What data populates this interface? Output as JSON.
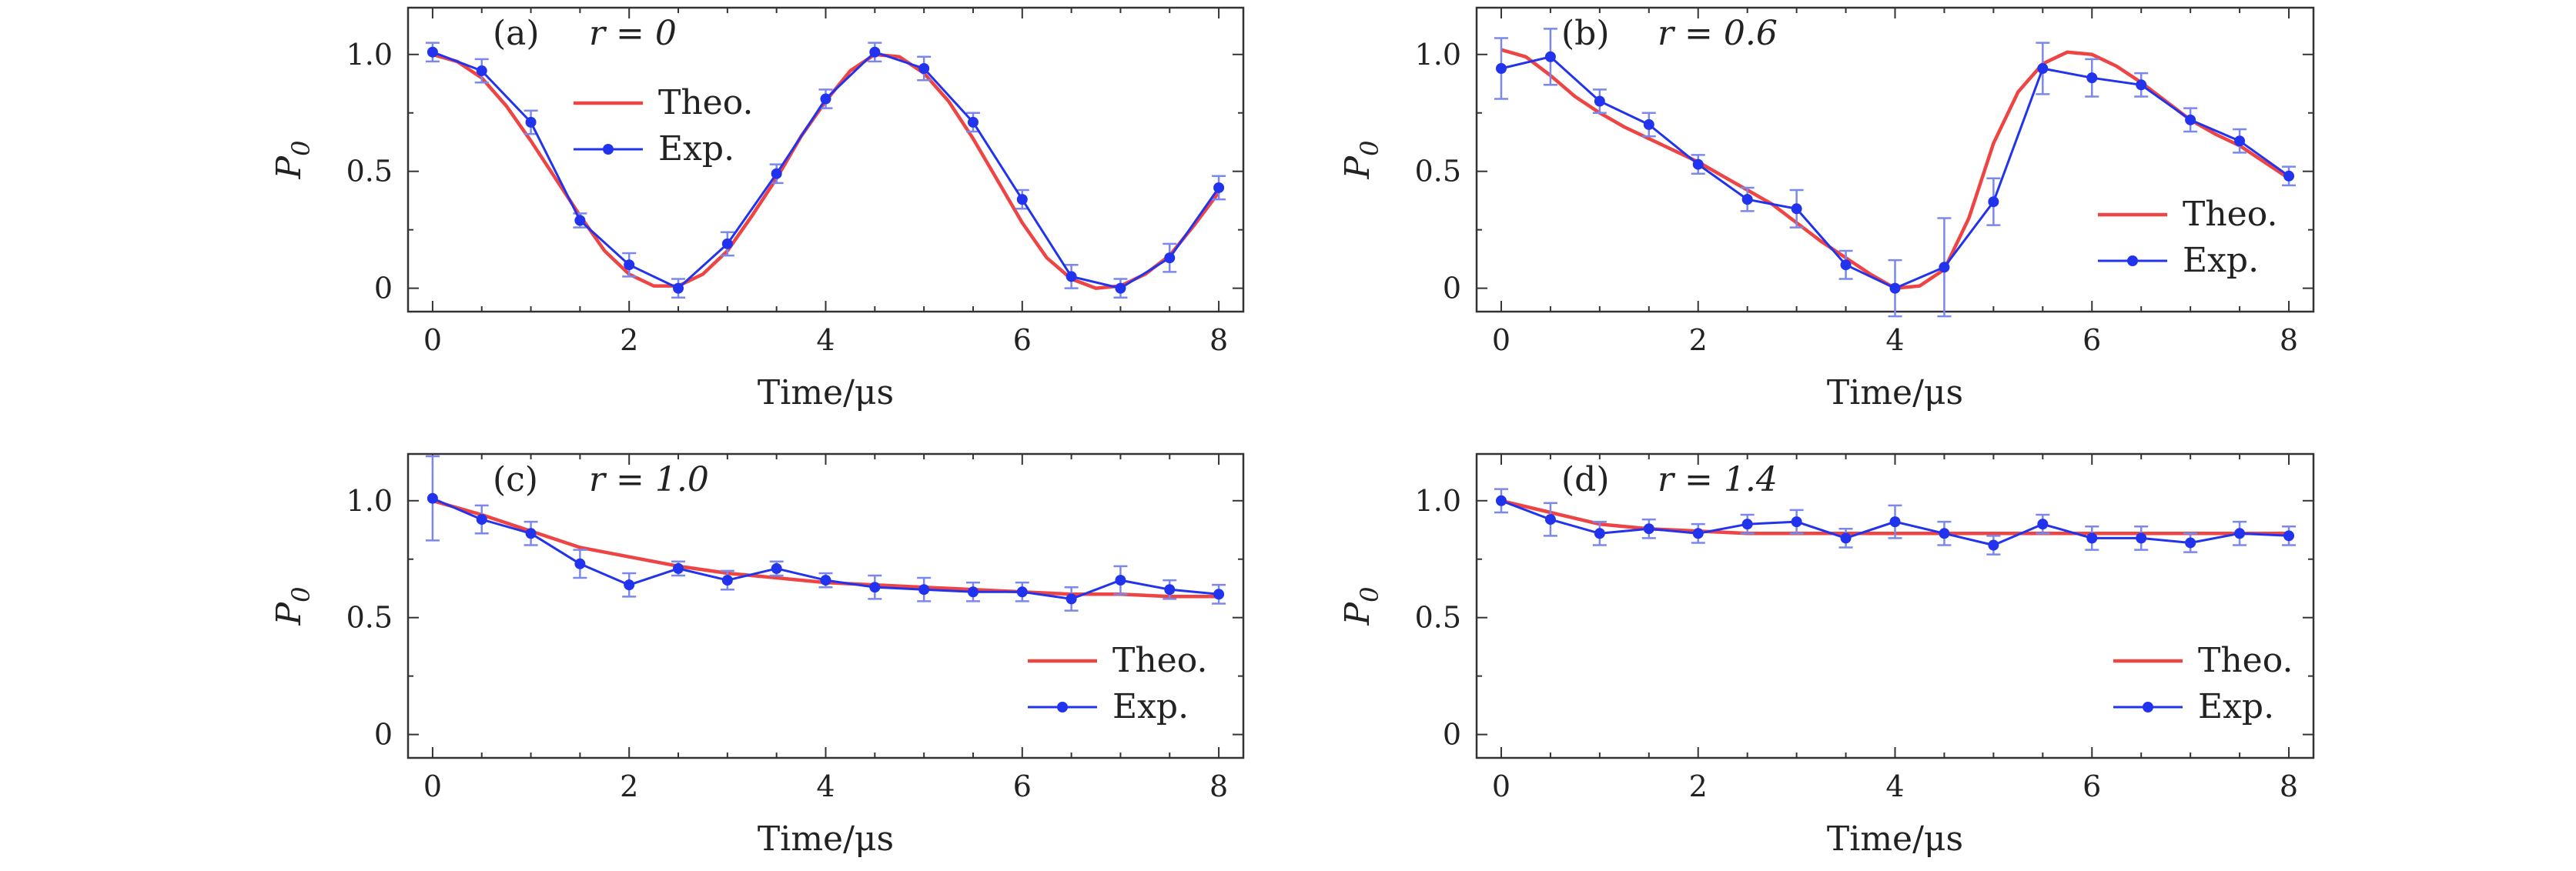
{
  "figure": {
    "y_label_main": "P",
    "y_label_sub": "0",
    "x_label": "Time/μs",
    "legend": [
      "Theo.",
      "Exp."
    ],
    "colors": {
      "theo": "#ee4444",
      "exp": "#2233ee",
      "errorbar": "#7a88ee",
      "axis": "#333333"
    }
  },
  "chart_data": [
    {
      "panel": "(a)",
      "param": "r = 0",
      "type": "line",
      "xlabel": "Time/μs",
      "ylabel": "P0",
      "xlim": [
        -0.25,
        8.25
      ],
      "ylim": [
        -0.1,
        1.2
      ],
      "x_ticks": [
        0,
        2,
        4,
        6,
        8
      ],
      "y_ticks": [
        0,
        0.5,
        1.0
      ],
      "y_tick_labels": [
        "0",
        "0.5",
        "1.0"
      ],
      "legend_position": "middle-left",
      "series": [
        {
          "name": "Theo.",
          "style": "line",
          "x": [
            0,
            0.25,
            0.5,
            0.75,
            1.0,
            1.25,
            1.5,
            1.75,
            2.0,
            2.25,
            2.5,
            2.75,
            3.0,
            3.25,
            3.5,
            3.75,
            4.0,
            4.25,
            4.5,
            4.75,
            5.0,
            5.25,
            5.5,
            5.75,
            6.0,
            6.25,
            6.5,
            6.75,
            7.0,
            7.25,
            7.5,
            7.75,
            8.0
          ],
          "y": [
            1.0,
            0.97,
            0.9,
            0.78,
            0.63,
            0.47,
            0.31,
            0.16,
            0.06,
            0.01,
            0.01,
            0.06,
            0.16,
            0.31,
            0.47,
            0.65,
            0.8,
            0.93,
            1.0,
            0.99,
            0.92,
            0.8,
            0.64,
            0.46,
            0.28,
            0.13,
            0.04,
            0.0,
            0.01,
            0.06,
            0.14,
            0.27,
            0.41
          ]
        },
        {
          "name": "Exp.",
          "style": "line-marker",
          "x": [
            0,
            0.5,
            1.0,
            1.5,
            2.0,
            2.5,
            3.0,
            3.5,
            4.0,
            4.5,
            5.0,
            5.5,
            6.0,
            6.5,
            7.0,
            7.5,
            8.0
          ],
          "y": [
            1.01,
            0.93,
            0.71,
            0.29,
            0.1,
            0.0,
            0.19,
            0.49,
            0.81,
            1.01,
            0.94,
            0.71,
            0.38,
            0.05,
            0.0,
            0.13,
            0.43
          ],
          "err": [
            0.04,
            0.05,
            0.05,
            0.03,
            0.05,
            0.04,
            0.05,
            0.04,
            0.04,
            0.04,
            0.05,
            0.04,
            0.04,
            0.05,
            0.04,
            0.06,
            0.05
          ]
        }
      ]
    },
    {
      "panel": "(b)",
      "param": "r = 0.6",
      "type": "line",
      "xlabel": "Time/μs",
      "ylabel": "P0",
      "xlim": [
        -0.25,
        8.25
      ],
      "ylim": [
        -0.1,
        1.2
      ],
      "x_ticks": [
        0,
        2,
        4,
        6,
        8
      ],
      "y_ticks": [
        0,
        0.5,
        1.0
      ],
      "y_tick_labels": [
        "0",
        "0.5",
        "1.0"
      ],
      "legend_position": "bottom-right",
      "series": [
        {
          "name": "Theo.",
          "style": "line",
          "x": [
            0,
            0.25,
            0.5,
            0.75,
            1.0,
            1.25,
            1.5,
            1.75,
            2.0,
            2.25,
            2.5,
            2.75,
            3.0,
            3.25,
            3.5,
            3.75,
            4.0,
            4.25,
            4.5,
            4.75,
            5.0,
            5.25,
            5.5,
            5.75,
            6.0,
            6.25,
            6.5,
            6.75,
            7.0,
            7.25,
            7.5,
            7.75,
            8.0
          ],
          "y": [
            1.02,
            0.99,
            0.91,
            0.82,
            0.75,
            0.69,
            0.64,
            0.59,
            0.54,
            0.48,
            0.42,
            0.36,
            0.28,
            0.2,
            0.13,
            0.06,
            0.0,
            0.01,
            0.08,
            0.3,
            0.62,
            0.84,
            0.96,
            1.01,
            1.0,
            0.95,
            0.88,
            0.8,
            0.72,
            0.66,
            0.61,
            0.54,
            0.47
          ]
        },
        {
          "name": "Exp.",
          "style": "line-marker",
          "x": [
            0,
            0.5,
            1.0,
            1.5,
            2.0,
            2.5,
            3.0,
            3.5,
            4.0,
            4.5,
            5.0,
            5.5,
            6.0,
            6.5,
            7.0,
            7.5,
            8.0
          ],
          "y": [
            0.94,
            0.99,
            0.8,
            0.7,
            0.53,
            0.38,
            0.34,
            0.1,
            0.0,
            0.09,
            0.37,
            0.94,
            0.9,
            0.87,
            0.72,
            0.63,
            0.48
          ],
          "err": [
            0.13,
            0.12,
            0.05,
            0.05,
            0.04,
            0.05,
            0.08,
            0.06,
            0.12,
            0.21,
            0.1,
            0.11,
            0.08,
            0.05,
            0.05,
            0.05,
            0.04
          ]
        }
      ]
    },
    {
      "panel": "(c)",
      "param": "r = 1.0",
      "type": "line",
      "xlabel": "Time/μs",
      "ylabel": "P0",
      "xlim": [
        -0.25,
        8.25
      ],
      "ylim": [
        -0.1,
        1.2
      ],
      "x_ticks": [
        0,
        2,
        4,
        6,
        8
      ],
      "y_ticks": [
        0,
        0.5,
        1.0
      ],
      "y_tick_labels": [
        "0",
        "0.5",
        "1.0"
      ],
      "legend_position": "bottom-right",
      "series": [
        {
          "name": "Theo.",
          "style": "line",
          "x": [
            0,
            0.5,
            1.0,
            1.5,
            2.0,
            2.5,
            3.0,
            3.5,
            4.0,
            4.5,
            5.0,
            5.5,
            6.0,
            6.5,
            7.0,
            7.5,
            8.0
          ],
          "y": [
            1.0,
            0.94,
            0.87,
            0.8,
            0.76,
            0.72,
            0.69,
            0.67,
            0.65,
            0.64,
            0.63,
            0.62,
            0.61,
            0.6,
            0.6,
            0.59,
            0.59
          ]
        },
        {
          "name": "Exp.",
          "style": "line-marker",
          "x": [
            0,
            0.5,
            1.0,
            1.5,
            2.0,
            2.5,
            3.0,
            3.5,
            4.0,
            4.5,
            5.0,
            5.5,
            6.0,
            6.5,
            7.0,
            7.5,
            8.0
          ],
          "y": [
            1.01,
            0.92,
            0.86,
            0.73,
            0.64,
            0.71,
            0.66,
            0.71,
            0.66,
            0.63,
            0.62,
            0.61,
            0.61,
            0.58,
            0.66,
            0.62,
            0.6
          ],
          "err": [
            0.18,
            0.06,
            0.05,
            0.06,
            0.05,
            0.03,
            0.04,
            0.03,
            0.03,
            0.05,
            0.05,
            0.04,
            0.04,
            0.05,
            0.06,
            0.04,
            0.04
          ]
        }
      ]
    },
    {
      "panel": "(d)",
      "param": "r = 1.4",
      "type": "line",
      "xlabel": "Time/μs",
      "ylabel": "P0",
      "xlim": [
        -0.25,
        8.25
      ],
      "ylim": [
        -0.1,
        1.2
      ],
      "x_ticks": [
        0,
        2,
        4,
        6,
        8
      ],
      "y_ticks": [
        0,
        0.5,
        1.0
      ],
      "y_tick_labels": [
        "0",
        "0.5",
        "1.0"
      ],
      "legend_position": "bottom-right",
      "series": [
        {
          "name": "Theo.",
          "style": "line",
          "x": [
            0,
            0.5,
            1.0,
            1.5,
            2.0,
            2.5,
            3.0,
            3.5,
            4.0,
            4.5,
            5.0,
            5.5,
            6.0,
            6.5,
            7.0,
            7.5,
            8.0
          ],
          "y": [
            1.0,
            0.95,
            0.9,
            0.88,
            0.87,
            0.86,
            0.86,
            0.86,
            0.86,
            0.86,
            0.86,
            0.86,
            0.86,
            0.86,
            0.86,
            0.86,
            0.86
          ]
        },
        {
          "name": "Exp.",
          "style": "line-marker",
          "x": [
            0,
            0.5,
            1.0,
            1.5,
            2.0,
            2.5,
            3.0,
            3.5,
            4.0,
            4.5,
            5.0,
            5.5,
            6.0,
            6.5,
            7.0,
            7.5,
            8.0
          ],
          "y": [
            1.0,
            0.92,
            0.86,
            0.88,
            0.86,
            0.9,
            0.91,
            0.84,
            0.91,
            0.86,
            0.81,
            0.9,
            0.84,
            0.84,
            0.82,
            0.86,
            0.85
          ],
          "err": [
            0.05,
            0.07,
            0.05,
            0.04,
            0.04,
            0.04,
            0.05,
            0.04,
            0.07,
            0.05,
            0.04,
            0.04,
            0.05,
            0.05,
            0.04,
            0.05,
            0.04
          ]
        }
      ]
    }
  ]
}
